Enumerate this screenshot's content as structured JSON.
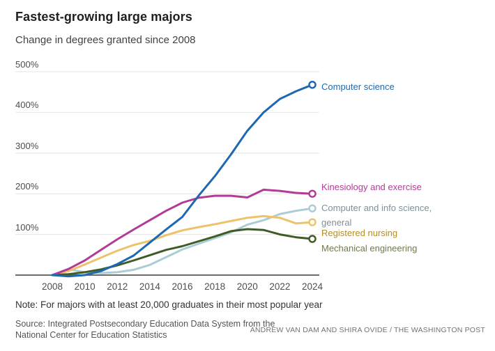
{
  "header": {
    "title": "Fastest-growing large majors",
    "subtitle": "Change in degrees granted since 2008"
  },
  "chart_data": {
    "type": "line",
    "title": "Fastest-growing large majors",
    "subtitle": "Change in degrees granted since 2008",
    "x": [
      2008,
      2009,
      2010,
      2011,
      2012,
      2013,
      2014,
      2015,
      2016,
      2017,
      2018,
      2019,
      2020,
      2021,
      2022,
      2023,
      2024
    ],
    "series": [
      {
        "name": "Computer science",
        "color": "#1e68b2",
        "label_color": "#2268ae",
        "label_lines": [
          "Computer science"
        ],
        "label_top": 114,
        "values": [
          0,
          -3,
          0,
          10,
          27,
          48,
          80,
          112,
          143,
          195,
          243,
          297,
          355,
          400,
          433,
          452,
          468
        ]
      },
      {
        "name": "Kinesiology and exercise",
        "color": "#b23b98",
        "label_color": "#b23b98",
        "label_lines": [
          "Kinesiology and exercise"
        ],
        "label_top": 258,
        "values": [
          0,
          15,
          36,
          62,
          88,
          112,
          135,
          158,
          178,
          190,
          195,
          195,
          191,
          210,
          207,
          202,
          200
        ]
      },
      {
        "name": "Computer and info science, general",
        "color": "#abccd4",
        "label_color": "#7e9297",
        "label_lines": [
          "Computer and info science,",
          "general"
        ],
        "label_top": 288,
        "values": [
          0,
          14,
          7,
          5,
          7,
          13,
          25,
          44,
          63,
          77,
          91,
          105,
          124,
          135,
          150,
          158,
          164
        ]
      },
      {
        "name": "Registered nursing",
        "color": "#eec26a",
        "label_color": "#b28d27",
        "label_lines": [
          "Registered nursing"
        ],
        "label_top": 324,
        "values": [
          0,
          10,
          26,
          43,
          60,
          74,
          84,
          98,
          110,
          118,
          125,
          133,
          141,
          145,
          141,
          127,
          130
        ]
      },
      {
        "name": "Mechanical engineering",
        "color": "#3f5b26",
        "label_color": "#6d7b4e",
        "label_lines": [
          "Mechanical engineering"
        ],
        "label_top": 346,
        "values": [
          0,
          2,
          7,
          14,
          24,
          36,
          49,
          62,
          71,
          83,
          95,
          108,
          113,
          111,
          100,
          93,
          89
        ]
      }
    ],
    "xticks": [
      {
        "value": 2008,
        "label": "2008"
      },
      {
        "value": 2010,
        "label": "2010"
      },
      {
        "value": 2012,
        "label": "2012"
      },
      {
        "value": 2014,
        "label": "2014"
      },
      {
        "value": 2016,
        "label": "2016"
      },
      {
        "value": 2018,
        "label": "2018"
      },
      {
        "value": 2020,
        "label": "2020"
      },
      {
        "value": 2022,
        "label": "2022"
      },
      {
        "value": 2024,
        "label": "2024"
      }
    ],
    "yticks": [
      {
        "value": 100,
        "label": "100%"
      },
      {
        "value": 200,
        "label": "200%"
      },
      {
        "value": 300,
        "label": "300%"
      },
      {
        "value": 400,
        "label": "400%"
      },
      {
        "value": 500,
        "label": "500%"
      }
    ],
    "xlim": [
      2008,
      2024
    ],
    "ylim": [
      -5,
      500
    ],
    "grid": true,
    "legend_position": "right-end-labels",
    "grid_color": "#e4e4e4",
    "axis_color": "#6b6b6b"
  },
  "footer": {
    "note": "Note: For majors with at least 20,000 graduates in their most popular year",
    "source": "Source: Integrated Postsecondary Education Data System from the National Center for Education Statistics",
    "credit": "ANDREW VAN DAM AND SHIRA OVIDE / THE WASHINGTON POST"
  }
}
